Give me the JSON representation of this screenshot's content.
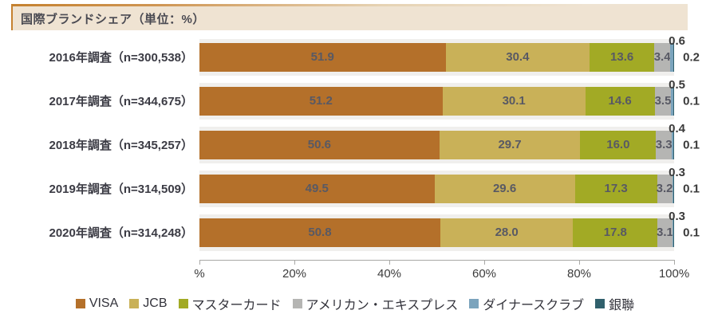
{
  "title_bar": {
    "text": "国際ブランドシェア（単位：%）"
  },
  "chart_data": {
    "type": "bar",
    "subtype": "horizontal-stacked",
    "title": "国際ブランドシェア（単位：%）",
    "unit": "%",
    "xlim": [
      0,
      100
    ],
    "grid": false,
    "legend_position": "bottom",
    "plot_band_color": "#f0efed",
    "series": [
      {
        "name": "VISA",
        "color": "#b4702a"
      },
      {
        "name": "JCB",
        "color": "#c9b158"
      },
      {
        "name": "マスターカード",
        "color": "#a2aa25"
      },
      {
        "name": "アメリカン・エキスプレス",
        "color": "#b5b5b3"
      },
      {
        "name": "ダイナースクラブ",
        "color": "#7ba4bd"
      },
      {
        "name": "銀聯",
        "color": "#30606c"
      }
    ],
    "rows": [
      {
        "label": "2016年調査（n=300,538）",
        "values": [
          51.9,
          30.4,
          13.6,
          3.4,
          0.6,
          0.2
        ],
        "labels": [
          "51.9",
          "30.4",
          "13.6",
          "3.4",
          "0.6",
          "0.2"
        ]
      },
      {
        "label": "2017年調査（n=344,675）",
        "values": [
          51.2,
          30.1,
          14.6,
          3.5,
          0.5,
          0.1
        ],
        "labels": [
          "51.2",
          "30.1",
          "14.6",
          "3.5",
          "0.5",
          "0.1"
        ]
      },
      {
        "label": "2018年調査（n=345,257）",
        "values": [
          50.6,
          29.7,
          16.0,
          3.3,
          0.4,
          0.1
        ],
        "labels": [
          "50.6",
          "29.7",
          "16.0",
          "3.3",
          "0.4",
          "0.1"
        ]
      },
      {
        "label": "2019年調査（n=314,509）",
        "values": [
          49.5,
          29.6,
          17.3,
          3.2,
          0.3,
          0.1
        ],
        "labels": [
          "49.5",
          "29.6",
          "17.3",
          "3.2",
          "0.3",
          "0.1"
        ]
      },
      {
        "label": "2020年調査（n=314,248）",
        "values": [
          50.8,
          28.0,
          17.8,
          3.1,
          0.3,
          0.1
        ],
        "labels": [
          "50.8",
          "28.0",
          "17.8",
          "3.1",
          "0.3",
          "0.1"
        ]
      }
    ],
    "x_ticks": [
      {
        "label": "%",
        "value": 0
      },
      {
        "label": "20%",
        "value": 20
      },
      {
        "label": "40%",
        "value": 40
      },
      {
        "label": "60%",
        "value": 60
      },
      {
        "label": "80%",
        "value": 80
      },
      {
        "label": "100%",
        "value": 100
      }
    ]
  }
}
